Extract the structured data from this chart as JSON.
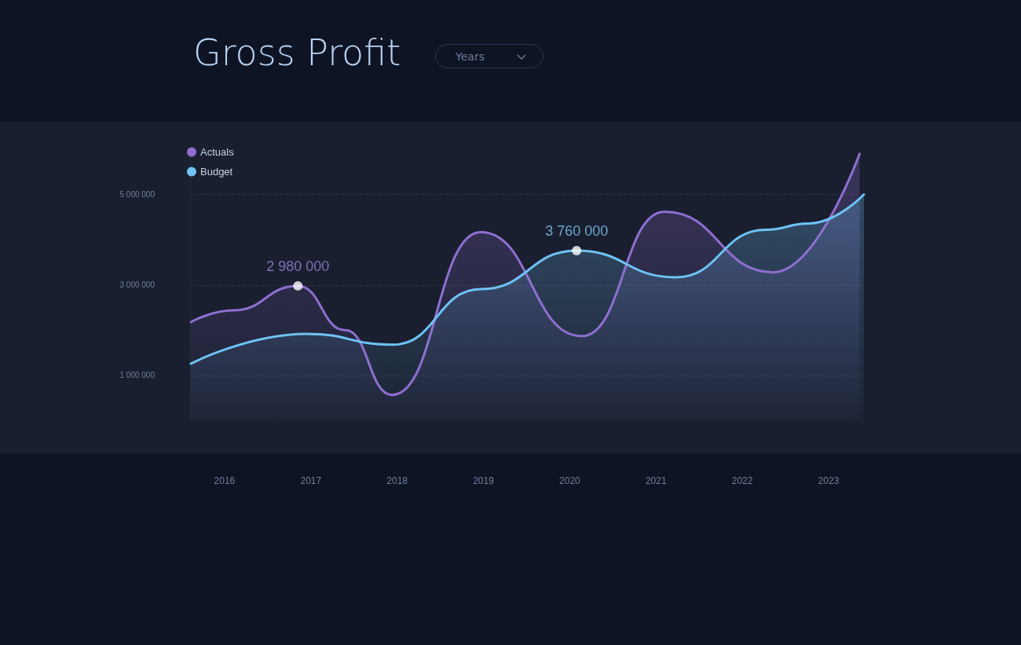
{
  "chart_data": {
    "type": "line",
    "title": "Gross Profit",
    "annotations": [
      {
        "text": "2 980 000",
        "x": 2016.85,
        "y": 2980000
      },
      {
        "text": "3 760 000",
        "x": 2020.08,
        "y": 3760000
      },
      "Years"
    ],
    "series": [
      {
        "name": "Actuals",
        "type": "area",
        "color": "#8f6fd0",
        "x": [
          2015.61,
          2016.1,
          2016.85,
          2017.4,
          2017.94,
          2018.97,
          2020.14,
          2021.1,
          2022.36,
          2023.36
        ],
        "values": [
          2180000,
          2440000,
          2980000,
          2000000,
          570000,
          4170000,
          1870000,
          4620000,
          3280000,
          5900000
        ]
      },
      {
        "name": "Budget",
        "type": "area",
        "color": "#6ec3f4",
        "x": [
          2015.61,
          2016.95,
          2017.95,
          2018.97,
          2020.08,
          2021.23,
          2022.27,
          2022.77,
          2023.41
        ],
        "values": [
          1260000,
          1920000,
          1680000,
          2910000,
          3760000,
          3170000,
          4220000,
          4360000,
          5000000
        ]
      }
    ],
    "xlim": [
      2015.6,
      2023.41
    ],
    "xticks": [
      2016,
      2017,
      2018,
      2019,
      2020,
      2021,
      2022,
      2023
    ],
    "ylim": [
      0,
      6000000
    ],
    "yticks": [
      {
        "value": 1000000,
        "label": "1 000 000"
      },
      {
        "value": 3000000,
        "label": "3 000 000"
      },
      {
        "value": 5000000,
        "label": "5 000 000"
      }
    ],
    "grid": "y",
    "legend": "top left",
    "marker": "none",
    "line_style": "solid"
  }
}
